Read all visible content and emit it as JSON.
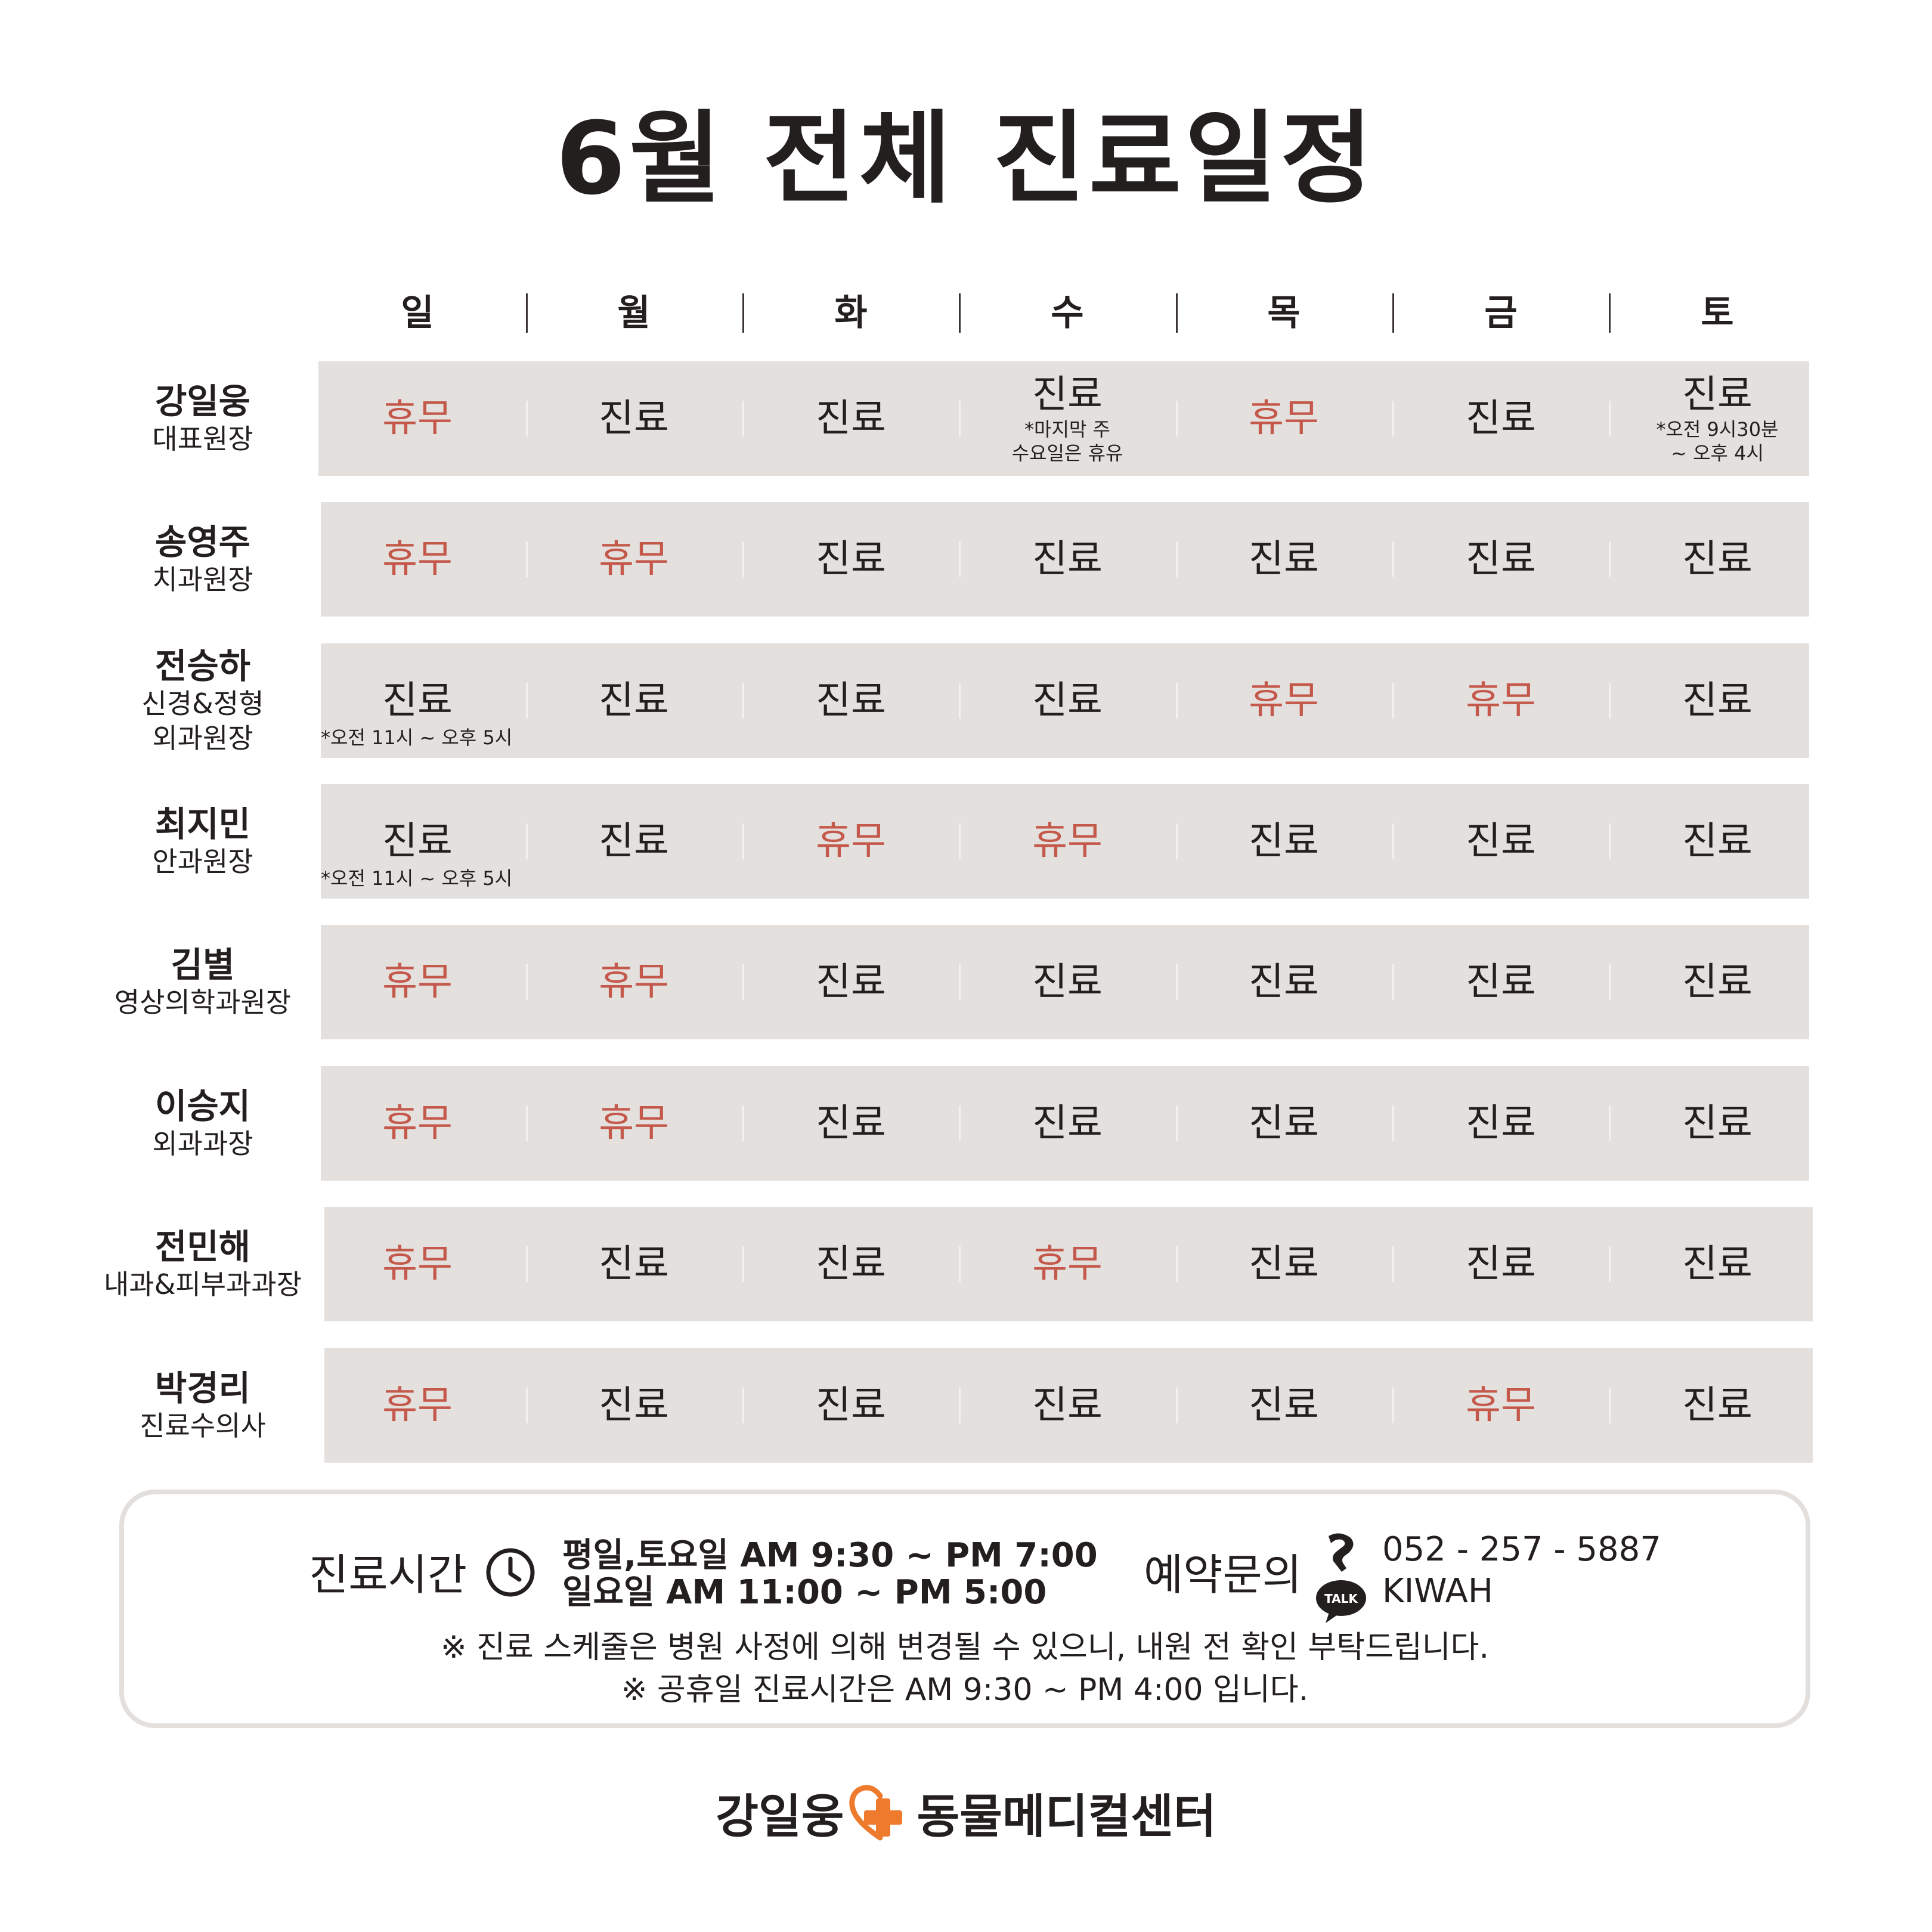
{
  "title": "6월 전체 진료일정",
  "days": [
    "일",
    "월",
    "화",
    "수",
    "목",
    "금",
    "토"
  ],
  "doctors": [
    {
      "name": "강일웅",
      "role": "대표원장",
      "schedule": [
        {
          "status": "휴무",
          "off": true
        },
        {
          "status": "진료",
          "off": false
        },
        {
          "status": "진료",
          "off": false
        },
        {
          "status": "진료",
          "off": false,
          "note": "*마지막 주\n수요일은 휴유"
        },
        {
          "status": "휴무",
          "off": true
        },
        {
          "status": "진료",
          "off": false
        },
        {
          "status": "진료",
          "off": false,
          "note": "*오전 9시30분\n~ 오후 4시"
        }
      ]
    },
    {
      "name": "송영주",
      "role": "치과원장",
      "schedule": [
        {
          "status": "휴무",
          "off": true
        },
        {
          "status": "휴무",
          "off": true
        },
        {
          "status": "진료",
          "off": false
        },
        {
          "status": "진료",
          "off": false
        },
        {
          "status": "진료",
          "off": false
        },
        {
          "status": "진료",
          "off": false
        },
        {
          "status": "진료",
          "off": false
        }
      ]
    },
    {
      "name": "전승하",
      "role": "신경&정형\n외과원장",
      "schedule": [
        {
          "status": "진료",
          "off": false,
          "note_below": "*오전 11시 ~ 오후 5시"
        },
        {
          "status": "진료",
          "off": false
        },
        {
          "status": "진료",
          "off": false
        },
        {
          "status": "진료",
          "off": false
        },
        {
          "status": "휴무",
          "off": true
        },
        {
          "status": "휴무",
          "off": true
        },
        {
          "status": "진료",
          "off": false
        }
      ]
    },
    {
      "name": "최지민",
      "role": "안과원장",
      "schedule": [
        {
          "status": "진료",
          "off": false,
          "note_below": "*오전 11시 ~ 오후 5시"
        },
        {
          "status": "진료",
          "off": false
        },
        {
          "status": "휴무",
          "off": true
        },
        {
          "status": "휴무",
          "off": true
        },
        {
          "status": "진료",
          "off": false
        },
        {
          "status": "진료",
          "off": false
        },
        {
          "status": "진료",
          "off": false
        }
      ]
    },
    {
      "name": "김별",
      "role": "영상의학과원장",
      "schedule": [
        {
          "status": "휴무",
          "off": true
        },
        {
          "status": "휴무",
          "off": true
        },
        {
          "status": "진료",
          "off": false
        },
        {
          "status": "진료",
          "off": false
        },
        {
          "status": "진료",
          "off": false
        },
        {
          "status": "진료",
          "off": false
        },
        {
          "status": "진료",
          "off": false
        }
      ]
    },
    {
      "name": "이승지",
      "role": "외과과장",
      "schedule": [
        {
          "status": "휴무",
          "off": true
        },
        {
          "status": "휴무",
          "off": true
        },
        {
          "status": "진료",
          "off": false
        },
        {
          "status": "진료",
          "off": false
        },
        {
          "status": "진료",
          "off": false
        },
        {
          "status": "진료",
          "off": false
        },
        {
          "status": "진료",
          "off": false
        }
      ]
    },
    {
      "name": "전민해",
      "role": "내과&피부과과장",
      "schedule": [
        {
          "status": "휴무",
          "off": true
        },
        {
          "status": "진료",
          "off": false
        },
        {
          "status": "진료",
          "off": false
        },
        {
          "status": "휴무",
          "off": true
        },
        {
          "status": "진료",
          "off": false
        },
        {
          "status": "진료",
          "off": false
        },
        {
          "status": "진료",
          "off": false
        }
      ]
    },
    {
      "name": "박경리",
      "role": "진료수의사",
      "schedule": [
        {
          "status": "휴무",
          "off": true
        },
        {
          "status": "진료",
          "off": false
        },
        {
          "status": "진료",
          "off": false
        },
        {
          "status": "진료",
          "off": false
        },
        {
          "status": "진료",
          "off": false
        },
        {
          "status": "휴무",
          "off": true
        },
        {
          "status": "진료",
          "off": false
        }
      ]
    }
  ],
  "info": {
    "hours_label": "진료시간",
    "hours_line1": "평일,토요일 AM 9:30 ~ PM 7:00",
    "hours_line2": "일요일 AM 11:00 ~ PM 5:00",
    "reservation_label": "예약문의",
    "phone": "052 - 257 - 5887",
    "kakao_id": "KIWAH",
    "kakao_badge": "TALK",
    "notice1": "※ 진료 스케줄은 병원 사정에 의해 변경될 수 있으니, 내원 전 확인 부탁드립니다.",
    "notice2": "※ 공휴일 진료시간은 AM 9:30 ~ PM 4:00 입니다."
  },
  "brand": {
    "left": "강일웅",
    "right": "동물메디컬센터"
  },
  "colors": {
    "off": "#c4584a",
    "band": "#e3e0de",
    "accent": "#ee7a2d",
    "text": "#231f1e"
  },
  "icons": {
    "clock": "clock-icon",
    "phone": "phone-icon",
    "kakao": "kakao-talk-icon",
    "logo": "heart-cross-icon"
  }
}
